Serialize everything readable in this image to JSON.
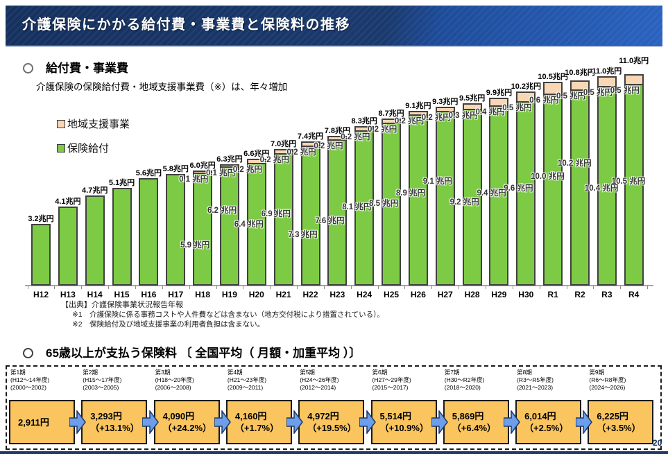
{
  "header": {
    "title": "介護保険にかかる給付費・事業費と保険料の推移"
  },
  "benefits_section": {
    "marker": "○",
    "heading": "給付費・事業費",
    "subtitle": "介護保険の保険給付費・地域支援事業費（※）は、年々増加",
    "legend": [
      {
        "label": "地域支援事業",
        "color": "#FAD7B4"
      },
      {
        "label": "保険給付",
        "color": "#7DCB45"
      }
    ],
    "source": "【出典】介護保険事業状況報告年報",
    "notes": [
      "※1　介護保険に係る事務コストや人件費などは含まない（地方交付税により措置されている）。",
      "※2　保険給付及び地域支援事業の利用者負担は含まない。"
    ]
  },
  "chart_data": {
    "type": "bar",
    "stacked": true,
    "unit": "兆円",
    "ylim": [
      0,
      11.5
    ],
    "grid": false,
    "categories": [
      "H12",
      "H13",
      "H14",
      "H15",
      "H16",
      "H17",
      "H18",
      "H19",
      "H20",
      "H21",
      "H22",
      "H23",
      "H24",
      "H25",
      "H26",
      "H27",
      "H28",
      "H29",
      "H30",
      "R1",
      "R2",
      "R3",
      "R4"
    ],
    "series": [
      {
        "name": "保険給付",
        "color": "#7DCB45",
        "values": [
          3.2,
          4.1,
          4.7,
          5.1,
          5.6,
          5.8,
          5.9,
          6.2,
          6.4,
          6.9,
          7.3,
          7.6,
          8.1,
          8.5,
          8.9,
          9.1,
          9.2,
          9.4,
          9.6,
          10.0,
          10.2,
          10.4,
          10.5
        ]
      },
      {
        "name": "地域支援事業",
        "color": "#FAD7B4",
        "values": [
          0,
          0,
          0,
          0,
          0,
          0,
          0.1,
          0.1,
          0.2,
          0.2,
          0.2,
          0.2,
          0.2,
          0.2,
          0.2,
          0.2,
          0.3,
          0.4,
          0.5,
          0.6,
          0.5,
          0.5,
          0.5
        ]
      }
    ],
    "totals": [
      3.2,
      4.1,
      4.7,
      5.1,
      5.6,
      5.8,
      6.0,
      6.3,
      6.6,
      7.0,
      7.4,
      7.8,
      8.3,
      8.7,
      9.1,
      9.3,
      9.5,
      9.9,
      10.2,
      10.5,
      10.8,
      11.0,
      11.0
    ],
    "total_labels": [
      "3.2兆円",
      "4.1兆円",
      "4.7兆円",
      "5.1兆円",
      "5.6兆円",
      "5.8兆円",
      "6.0兆円",
      "6.3兆円",
      "6.6兆円",
      "7.0兆円",
      "7.4兆円",
      "7.8兆円",
      "8.3兆円",
      "8.7兆円",
      "9.1兆円",
      "9.3兆円",
      "9.5兆円",
      "9.9兆円",
      "10.2兆円",
      "10.5兆円",
      "10.8兆円",
      "11.0兆円",
      "11.0兆円"
    ],
    "green_labels": [
      null,
      null,
      null,
      null,
      null,
      null,
      "5.9 兆円",
      "6.2 兆円",
      "6.4 兆円",
      "6.9 兆円",
      "7.3 兆円",
      "7.6 兆円",
      "8.1 兆円",
      "8.5 兆円",
      "8.9 兆円",
      "9.1 兆円",
      "9.2 兆円",
      "9.4 兆円",
      "9.6 兆円",
      "10.0 兆円",
      "10.2 兆円",
      "10.4 兆円",
      "10.5 兆円"
    ],
    "segment_labels": [
      null,
      null,
      null,
      null,
      null,
      null,
      "0.1 兆円",
      "0.1 兆円",
      "0.2 兆円",
      "0.2 兆円",
      "0.2 兆円",
      "0.2 兆円",
      "0.2 兆円",
      "0.2 兆円",
      "0.2 兆円",
      "0.2 兆円",
      "0.3 兆円",
      "0.4 兆円",
      "0.5 兆円",
      "0.6 兆円",
      "0.5 兆円",
      "0.5 兆円",
      "0.5 兆円"
    ]
  },
  "premium_section": {
    "marker": "○",
    "heading": "65歳以上が支払う保険料 〔 全国平均（ 月額・加重平均 ）〕",
    "box_color": "#FAC55F",
    "arrow_color": "#6D9EEB",
    "periods": [
      {
        "name": "第1期",
        "era": "(H12～14年度)",
        "years": "(2000～2002)",
        "amount": "2,911円",
        "change": ""
      },
      {
        "name": "第2期",
        "era": "(H15～17年度)",
        "years": "(2003～2005)",
        "amount": "3,293円",
        "change": "（+13.1%）"
      },
      {
        "name": "第3期",
        "era": "(H18～20年度)",
        "years": "(2006～2008)",
        "amount": "4,090円",
        "change": "（+24.2%）"
      },
      {
        "name": "第4期",
        "era": "(H21～23年度)",
        "years": "(2009～2011)",
        "amount": "4,160円",
        "change": "（+1.7%）"
      },
      {
        "name": "第5期",
        "era": "(H24～26年度)",
        "years": "(2012～2014)",
        "amount": "4,972円",
        "change": "（+19.5%）"
      },
      {
        "name": "第6期",
        "era": "(H27～29年度)",
        "years": "(2015～2017)",
        "amount": "5,514円",
        "change": "（+10.9%）"
      },
      {
        "name": "第7期",
        "era": "(H30～R2年度)",
        "years": "(2018～2020)",
        "amount": "5,869円",
        "change": "（+6.4%）"
      },
      {
        "name": "第8期",
        "era": "(R3～R5年度)",
        "years": "(2021～2023)",
        "amount": "6,014円",
        "change": "（+2.5%）"
      },
      {
        "name": "第9期",
        "era": "(R6～R8年度)",
        "years": "(2024～2026)",
        "amount": "6,225円",
        "change": "（+3.5%）"
      }
    ]
  },
  "page_number": "20"
}
